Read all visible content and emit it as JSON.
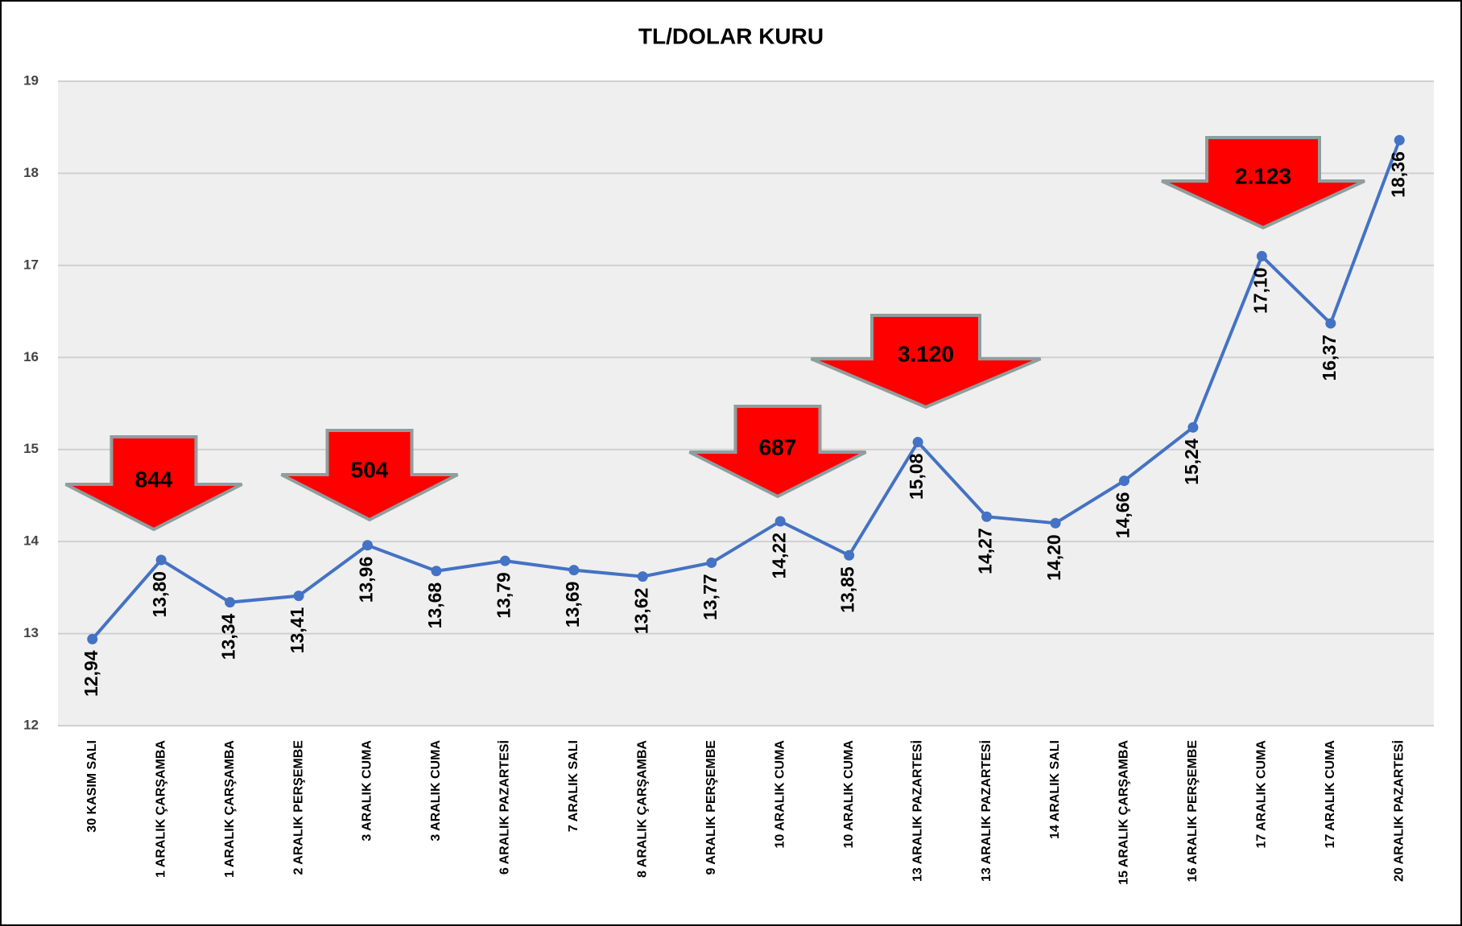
{
  "chart_data": {
    "type": "line",
    "title": "TL/DOLAR KURU",
    "categories": [
      "30 KASIM SALI",
      "1 ARALIK ÇARŞAMBA",
      "1 ARALIK ÇARŞAMBA",
      "2 ARALIK PERŞEMBE",
      "3 ARALIK CUMA",
      "3 ARALIK CUMA",
      "6 ARALIK PAZARTESİ",
      "7 ARALIK SALI",
      "8 ARALIK ÇARŞAMBA",
      "9 ARALIK PERŞEMBE",
      "10 ARALIK CUMA",
      "10 ARALIK CUMA",
      "13 ARALIK PAZARTESİ",
      "13 ARALIK PAZARTESİ",
      "14 ARALIK SALI",
      "15 ARALIK ÇARŞAMBA",
      "16 ARALIK PERŞEMBE",
      "17 ARALIK CUMA",
      "17 ARALIK CUMA",
      "20 ARALIK PAZARTESİ"
    ],
    "series": [
      {
        "color": "#4472c4",
        "values": [
          12.94,
          13.8,
          13.34,
          13.41,
          13.96,
          13.68,
          13.79,
          13.69,
          13.62,
          13.77,
          14.22,
          13.85,
          15.08,
          14.27,
          14.2,
          14.66,
          15.24,
          17.1,
          16.37,
          18.36
        ],
        "value_labels": [
          "12,94",
          "13,80",
          "13,34",
          "13,41",
          "13,96",
          "13,68",
          "13,79",
          "13,69",
          "13,62",
          "13,77",
          "14,22",
          "13,85",
          "15,08",
          "14,27",
          "14,20",
          "14,66",
          "15,24",
          "17,10",
          "16,37",
          "18,36"
        ]
      }
    ],
    "ylim": [
      12,
      19
    ],
    "yticks": [
      12,
      13,
      14,
      15,
      16,
      17,
      18,
      19
    ],
    "grid": true,
    "annotations": [
      "844",
      "504",
      "687",
      "3.120",
      "2.123"
    ]
  }
}
